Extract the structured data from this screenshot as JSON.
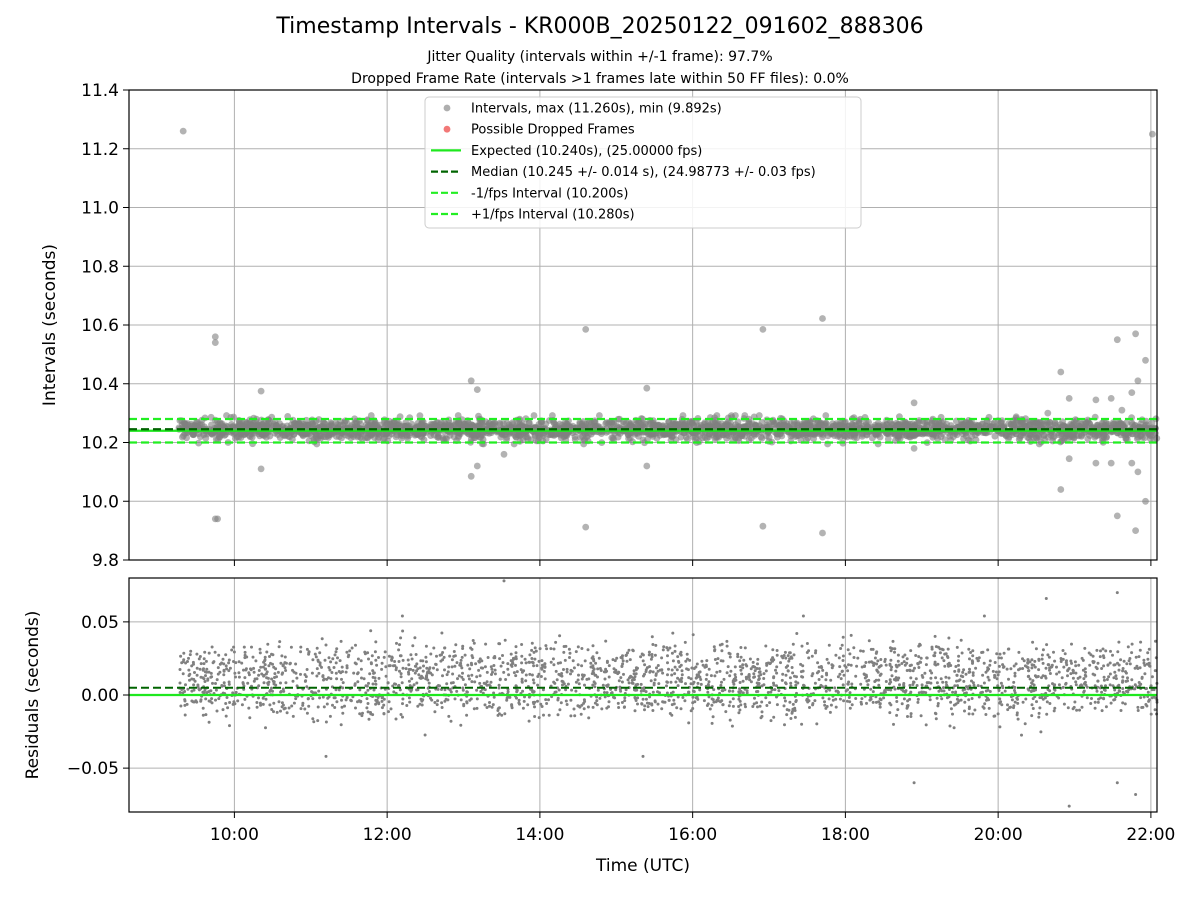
{
  "title": "Timestamp Intervals - KR000B_20250122_091602_888306",
  "subtitle_1": "Jitter Quality (intervals within +/-1 frame): 97.7%",
  "subtitle_2": "Dropped Frame Rate (intervals >1 frames late within 50 FF files): 0.0%",
  "colors": {
    "points": "#808080",
    "dropped": "#f0605f",
    "expected": "#1ee81e",
    "median": "#006400",
    "fps_bounds": "#22ee22",
    "grid": "#b0b0b0"
  },
  "chart_data": [
    {
      "id": "intervals",
      "type": "scatter",
      "ylabel": "Intervals (seconds)",
      "xlabel": "",
      "xlim_hours": [
        8.62,
        22.08
      ],
      "ylim": [
        9.8,
        11.4
      ],
      "yticks": [
        "9.8",
        "10.0",
        "10.2",
        "10.4",
        "10.6",
        "10.8",
        "11.0",
        "11.2",
        "11.4"
      ],
      "grid": true,
      "legend_placement": "upper center",
      "legend": [
        {
          "label": "Intervals, max (11.260s), min (9.892s)",
          "kind": "marker",
          "color": "#a0a0a0"
        },
        {
          "label": "Possible Dropped Frames",
          "kind": "marker",
          "color": "#f0605f"
        },
        {
          "label": "Expected (10.240s), (25.00000 fps)",
          "kind": "solid",
          "color": "#1ee81e"
        },
        {
          "label": "Median (10.245 +/- 0.014 s), (24.98773 +/- 0.03 fps)",
          "kind": "dashed",
          "color": "#006400"
        },
        {
          "label": "-1/fps Interval (10.200s)",
          "kind": "dashed",
          "color": "#22ee22"
        },
        {
          "label": "+1/fps Interval (10.280s)",
          "kind": "dashed",
          "color": "#22ee22"
        }
      ],
      "reference_lines": {
        "expected": 10.24,
        "median": 10.245,
        "minus_1_fps": 10.2,
        "plus_1_fps": 10.28
      },
      "dense_band": {
        "start_hour": 9.27,
        "end_hour": 22.08,
        "center": 10.245,
        "spread": 0.017,
        "count": 2600
      },
      "outliers": [
        {
          "x": 9.33,
          "y": 11.26
        },
        {
          "x": 9.75,
          "y": 10.56
        },
        {
          "x": 9.75,
          "y": 10.54
        },
        {
          "x": 9.75,
          "y": 9.94
        },
        {
          "x": 9.78,
          "y": 9.94
        },
        {
          "x": 10.35,
          "y": 10.375
        },
        {
          "x": 10.35,
          "y": 10.11
        },
        {
          "x": 13.1,
          "y": 10.41
        },
        {
          "x": 13.1,
          "y": 10.085
        },
        {
          "x": 13.18,
          "y": 10.38
        },
        {
          "x": 13.18,
          "y": 10.12
        },
        {
          "x": 13.53,
          "y": 10.16
        },
        {
          "x": 14.6,
          "y": 10.585
        },
        {
          "x": 14.6,
          "y": 9.912
        },
        {
          "x": 15.4,
          "y": 10.385
        },
        {
          "x": 15.4,
          "y": 10.12
        },
        {
          "x": 16.92,
          "y": 10.585
        },
        {
          "x": 16.92,
          "y": 9.915
        },
        {
          "x": 17.7,
          "y": 10.622
        },
        {
          "x": 17.7,
          "y": 9.892
        },
        {
          "x": 18.9,
          "y": 10.335
        },
        {
          "x": 18.9,
          "y": 10.18
        },
        {
          "x": 20.65,
          "y": 10.3
        },
        {
          "x": 20.82,
          "y": 10.44
        },
        {
          "x": 20.82,
          "y": 10.04
        },
        {
          "x": 20.93,
          "y": 10.35
        },
        {
          "x": 20.93,
          "y": 10.145
        },
        {
          "x": 21.28,
          "y": 10.345
        },
        {
          "x": 21.28,
          "y": 10.13
        },
        {
          "x": 21.48,
          "y": 10.35
        },
        {
          "x": 21.48,
          "y": 10.13
        },
        {
          "x": 21.56,
          "y": 10.55
        },
        {
          "x": 21.56,
          "y": 9.95
        },
        {
          "x": 21.62,
          "y": 10.31
        },
        {
          "x": 21.75,
          "y": 10.37
        },
        {
          "x": 21.75,
          "y": 10.13
        },
        {
          "x": 21.8,
          "y": 10.57
        },
        {
          "x": 21.8,
          "y": 9.9
        },
        {
          "x": 21.83,
          "y": 10.41
        },
        {
          "x": 21.83,
          "y": 10.1
        },
        {
          "x": 21.93,
          "y": 10.48
        },
        {
          "x": 21.93,
          "y": 10.0
        },
        {
          "x": 22.02,
          "y": 11.25
        }
      ]
    },
    {
      "id": "residuals",
      "type": "scatter",
      "ylabel": "Residuals (seconds)",
      "xlabel": "Time (UTC)",
      "xlim_hours": [
        8.62,
        22.08
      ],
      "ylim": [
        -0.08,
        0.08
      ],
      "yticks": [
        "−0.05",
        "0.00",
        "0.05"
      ],
      "ytick_values": [
        -0.05,
        0,
        0.05
      ],
      "xticks": [
        "10:00",
        "12:00",
        "14:00",
        "16:00",
        "18:00",
        "20:00",
        "22:00"
      ],
      "xtick_hours": [
        10,
        12,
        14,
        16,
        18,
        20,
        22
      ],
      "grid": true,
      "reference_lines": {
        "zero": 0.0,
        "median_offset": 0.005
      },
      "dense_band": {
        "start_hour": 9.27,
        "end_hour": 22.08,
        "levels": [
          0.0,
          0.02
        ],
        "spread": 0.008,
        "count": 2600
      },
      "outliers": [
        {
          "x": 13.53,
          "y": 0.078
        },
        {
          "x": 18.9,
          "y": -0.06
        },
        {
          "x": 20.93,
          "y": -0.076
        },
        {
          "x": 21.56,
          "y": 0.07
        },
        {
          "x": 21.56,
          "y": -0.06
        },
        {
          "x": 21.8,
          "y": -0.068
        },
        {
          "x": 20.63,
          "y": 0.066
        },
        {
          "x": 19.82,
          "y": 0.054
        },
        {
          "x": 12.2,
          "y": 0.054
        },
        {
          "x": 17.45,
          "y": 0.054
        },
        {
          "x": 15.35,
          "y": -0.042
        },
        {
          "x": 11.2,
          "y": -0.042
        }
      ]
    }
  ]
}
